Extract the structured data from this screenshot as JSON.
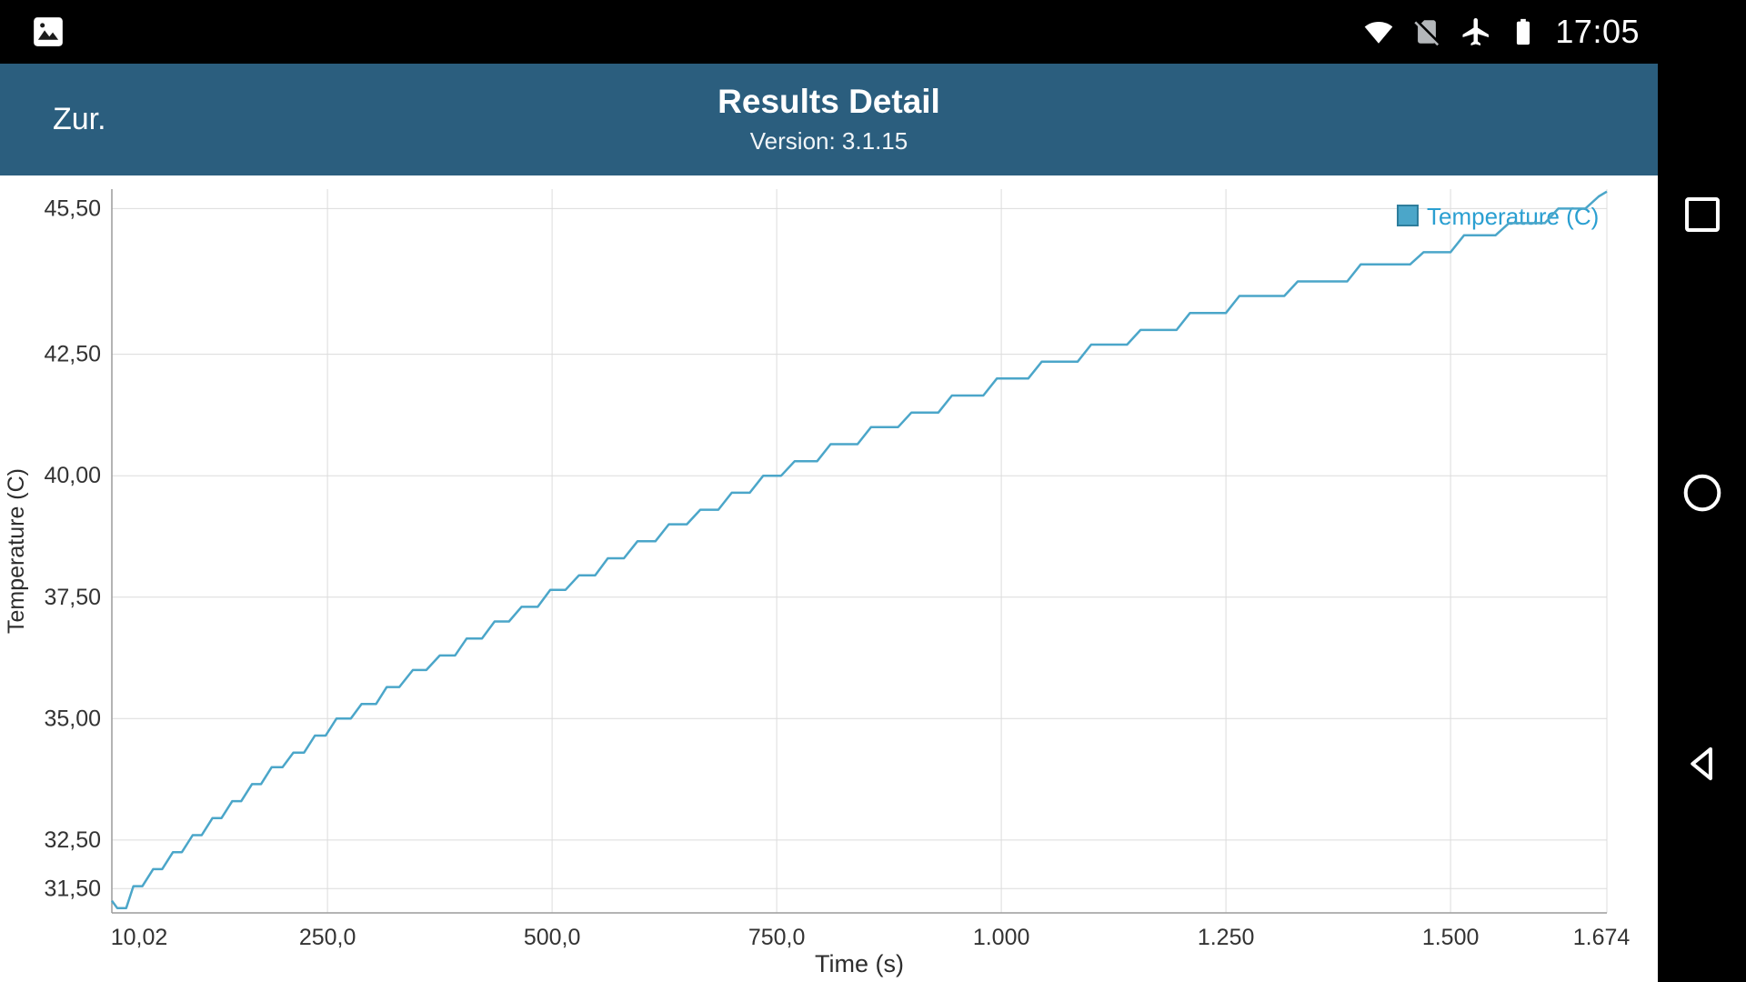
{
  "status_bar": {
    "time": "17:05",
    "icons": [
      "screenshot-notification",
      "wifi",
      "no-sim",
      "airplane-mode",
      "battery"
    ]
  },
  "header": {
    "back_label": "Zur.",
    "title": "Results Detail",
    "version": "Version: 3.1.15",
    "background": "#2b5e7e"
  },
  "nav_bar": {
    "icons": [
      "recents",
      "home",
      "back"
    ]
  },
  "chart_data": {
    "type": "line",
    "title": "",
    "xlabel": "Time (s)",
    "ylabel": "Temperature (C)",
    "legend_position": "top-right",
    "grid": true,
    "xlim": [
      10.02,
      1674
    ],
    "ylim": [
      31.0,
      45.9
    ],
    "x_ticks": [
      {
        "v": 10.02,
        "label": "10,02",
        "dx": 30
      },
      {
        "v": 250,
        "label": "250,0",
        "dx": 0
      },
      {
        "v": 500,
        "label": "500,0",
        "dx": 0
      },
      {
        "v": 750,
        "label": "750,0",
        "dx": 0
      },
      {
        "v": 1000,
        "label": "1.000",
        "dx": 0
      },
      {
        "v": 1250,
        "label": "1.250",
        "dx": 0
      },
      {
        "v": 1500,
        "label": "1.500",
        "dx": 0
      },
      {
        "v": 1674,
        "label": "1.674",
        "dx": -6
      }
    ],
    "y_ticks": [
      {
        "v": 45.5,
        "label": "45,50"
      },
      {
        "v": 42.5,
        "label": "42,50"
      },
      {
        "v": 40.0,
        "label": "40,00"
      },
      {
        "v": 37.5,
        "label": "37,50"
      },
      {
        "v": 35.0,
        "label": "35,00"
      },
      {
        "v": 32.5,
        "label": "32,50"
      },
      {
        "v": 31.5,
        "label": "31,50"
      }
    ],
    "line_color": "#4ba6c9",
    "legend_text_color": "#2a9fd1",
    "swatch_stroke": "#2e7d9c",
    "grid_color": "#dcdcdc",
    "axis_color": "#9b9b9b",
    "tick_text_color": "#333333",
    "axis_title_color": "#2d2d2d",
    "series": [
      {
        "name": "Temperature (C)",
        "points": [
          [
            10,
            31.25
          ],
          [
            16,
            31.1
          ],
          [
            26,
            31.1
          ],
          [
            34,
            31.55
          ],
          [
            44,
            31.55
          ],
          [
            56,
            31.9
          ],
          [
            66,
            31.9
          ],
          [
            78,
            32.25
          ],
          [
            88,
            32.25
          ],
          [
            100,
            32.6
          ],
          [
            110,
            32.6
          ],
          [
            122,
            32.95
          ],
          [
            132,
            32.95
          ],
          [
            144,
            33.3
          ],
          [
            154,
            33.3
          ],
          [
            166,
            33.65
          ],
          [
            176,
            33.65
          ],
          [
            188,
            34.0
          ],
          [
            200,
            34.0
          ],
          [
            212,
            34.3
          ],
          [
            224,
            34.3
          ],
          [
            236,
            34.65
          ],
          [
            248,
            34.65
          ],
          [
            260,
            35.0
          ],
          [
            276,
            35.0
          ],
          [
            288,
            35.3
          ],
          [
            304,
            35.3
          ],
          [
            316,
            35.65
          ],
          [
            330,
            35.65
          ],
          [
            345,
            36.0
          ],
          [
            360,
            36.0
          ],
          [
            375,
            36.3
          ],
          [
            392,
            36.3
          ],
          [
            405,
            36.65
          ],
          [
            422,
            36.65
          ],
          [
            436,
            37.0
          ],
          [
            452,
            37.0
          ],
          [
            466,
            37.3
          ],
          [
            484,
            37.3
          ],
          [
            498,
            37.65
          ],
          [
            515,
            37.65
          ],
          [
            530,
            37.95
          ],
          [
            548,
            37.95
          ],
          [
            562,
            38.3
          ],
          [
            580,
            38.3
          ],
          [
            595,
            38.65
          ],
          [
            615,
            38.65
          ],
          [
            630,
            39.0
          ],
          [
            650,
            39.0
          ],
          [
            665,
            39.3
          ],
          [
            685,
            39.3
          ],
          [
            700,
            39.65
          ],
          [
            720,
            39.65
          ],
          [
            735,
            40.0
          ],
          [
            755,
            40.0
          ],
          [
            770,
            40.3
          ],
          [
            795,
            40.3
          ],
          [
            810,
            40.65
          ],
          [
            840,
            40.65
          ],
          [
            855,
            41.0
          ],
          [
            885,
            41.0
          ],
          [
            900,
            41.3
          ],
          [
            930,
            41.3
          ],
          [
            945,
            41.65
          ],
          [
            980,
            41.65
          ],
          [
            995,
            42.0
          ],
          [
            1030,
            42.0
          ],
          [
            1045,
            42.35
          ],
          [
            1085,
            42.35
          ],
          [
            1100,
            42.7
          ],
          [
            1140,
            42.7
          ],
          [
            1155,
            43.0
          ],
          [
            1195,
            43.0
          ],
          [
            1210,
            43.35
          ],
          [
            1250,
            43.35
          ],
          [
            1265,
            43.7
          ],
          [
            1315,
            43.7
          ],
          [
            1330,
            44.0
          ],
          [
            1385,
            44.0
          ],
          [
            1400,
            44.35
          ],
          [
            1455,
            44.35
          ],
          [
            1470,
            44.6
          ],
          [
            1500,
            44.6
          ],
          [
            1515,
            44.95
          ],
          [
            1550,
            44.95
          ],
          [
            1565,
            45.2
          ],
          [
            1605,
            45.2
          ],
          [
            1620,
            45.5
          ],
          [
            1650,
            45.5
          ],
          [
            1665,
            45.75
          ],
          [
            1674,
            45.85
          ]
        ]
      }
    ]
  }
}
